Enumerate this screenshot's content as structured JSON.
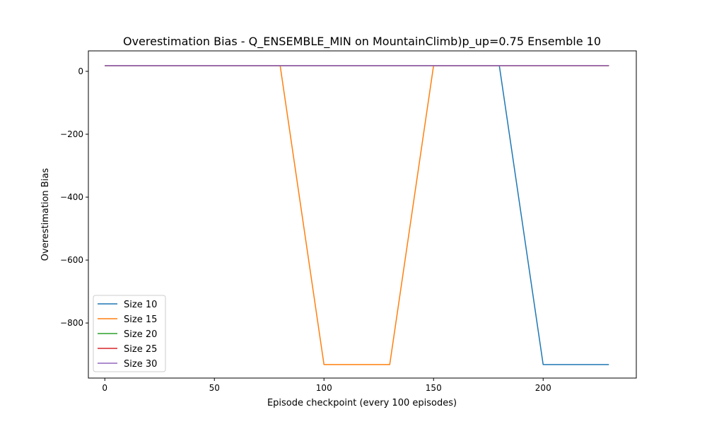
{
  "chart_data": {
    "type": "line",
    "title": "Overestimation Bias - Q_ENSEMBLE_MIN on MountainClimb)p_up=0.75 Ensemble 10",
    "xlabel": "Episode checkpoint (every 100 episodes)",
    "ylabel": "Overestimation Bias",
    "xlim": [
      -7.5,
      242.5
    ],
    "ylim": [
      -975,
      65
    ],
    "xticks": [
      0,
      50,
      100,
      150,
      200
    ],
    "yticks": [
      0,
      -200,
      -400,
      -600,
      -800
    ],
    "ytick_labels": [
      "0",
      "−200",
      "−400",
      "−600",
      "−800"
    ],
    "grid": false,
    "legend_position": "lower-left",
    "x": [
      0,
      10,
      20,
      30,
      40,
      50,
      60,
      70,
      80,
      90,
      100,
      110,
      120,
      130,
      140,
      150,
      160,
      170,
      180,
      190,
      200,
      210,
      220,
      230
    ],
    "series": [
      {
        "name": "Size 10",
        "color": "#1f77b4",
        "values": [
          18,
          18,
          18,
          18,
          18,
          18,
          18,
          18,
          18,
          18,
          18,
          18,
          18,
          18,
          18,
          18,
          18,
          18,
          18,
          -457,
          -932,
          -932,
          -932,
          -932
        ]
      },
      {
        "name": "Size 15",
        "color": "#ff7f0e",
        "values": [
          18,
          18,
          18,
          18,
          18,
          18,
          18,
          18,
          18,
          -457,
          -932,
          -932,
          -932,
          -932,
          -457,
          18,
          18,
          18,
          18,
          18,
          18,
          18,
          18,
          18
        ]
      },
      {
        "name": "Size 20",
        "color": "#2ca02c",
        "values": [
          18,
          18,
          18,
          18,
          18,
          18,
          18,
          18,
          18,
          18,
          18,
          18,
          18,
          18,
          18,
          18,
          18,
          18,
          18,
          18,
          18,
          18,
          18,
          18
        ]
      },
      {
        "name": "Size 25",
        "color": "#d62728",
        "values": [
          18,
          18,
          18,
          18,
          18,
          18,
          18,
          18,
          18,
          18,
          18,
          18,
          18,
          18,
          18,
          18,
          18,
          18,
          18,
          18,
          18,
          18,
          18,
          18
        ]
      },
      {
        "name": "Size 30",
        "color": "#9467bd",
        "values": [
          18,
          18,
          18,
          18,
          18,
          18,
          18,
          18,
          18,
          18,
          18,
          18,
          18,
          18,
          18,
          18,
          18,
          18,
          18,
          18,
          18,
          18,
          18,
          18
        ]
      }
    ]
  }
}
